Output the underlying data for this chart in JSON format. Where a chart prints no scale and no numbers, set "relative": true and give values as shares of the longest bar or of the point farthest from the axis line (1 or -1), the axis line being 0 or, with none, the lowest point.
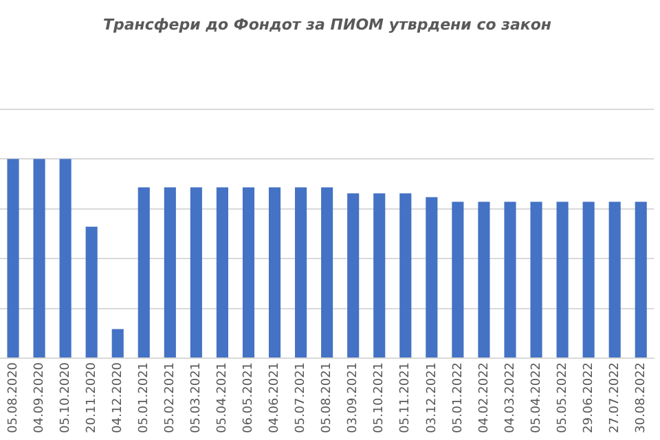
{
  "chart_data": {
    "type": "bar",
    "title": "Трансфери до Фондот за ПИОМ утврдени со закон",
    "relative": true,
    "grid": "y",
    "color": "#4472c4",
    "categories": [
      "05.08.2020",
      "04.09.2020",
      "05.10.2020",
      "20.11.2020",
      "04.12.2020",
      "05.01.2021",
      "05.02.2021",
      "05.03.2021",
      "05.04.2021",
      "06.05.2021",
      "04.06.2021",
      "05.07.2021",
      "05.08.2021",
      "03.09.2021",
      "05.10.2021",
      "05.11.2021",
      "03.12.2021",
      "05.01.2022",
      "04.02.2022",
      "04.03.2022",
      "05.04.2022",
      "05.05.2022",
      "29.06.2022",
      "27.07.2022",
      "30.08.2022"
    ],
    "values": [
      1,
      1,
      1,
      0.66,
      0.146,
      0.858,
      0.858,
      0.858,
      0.858,
      0.858,
      0.858,
      0.858,
      0.858,
      0.827,
      0.827,
      0.827,
      0.808,
      0.785,
      0.785,
      0.785,
      0.785,
      0.785,
      0.785,
      0.785,
      0.785
    ]
  }
}
